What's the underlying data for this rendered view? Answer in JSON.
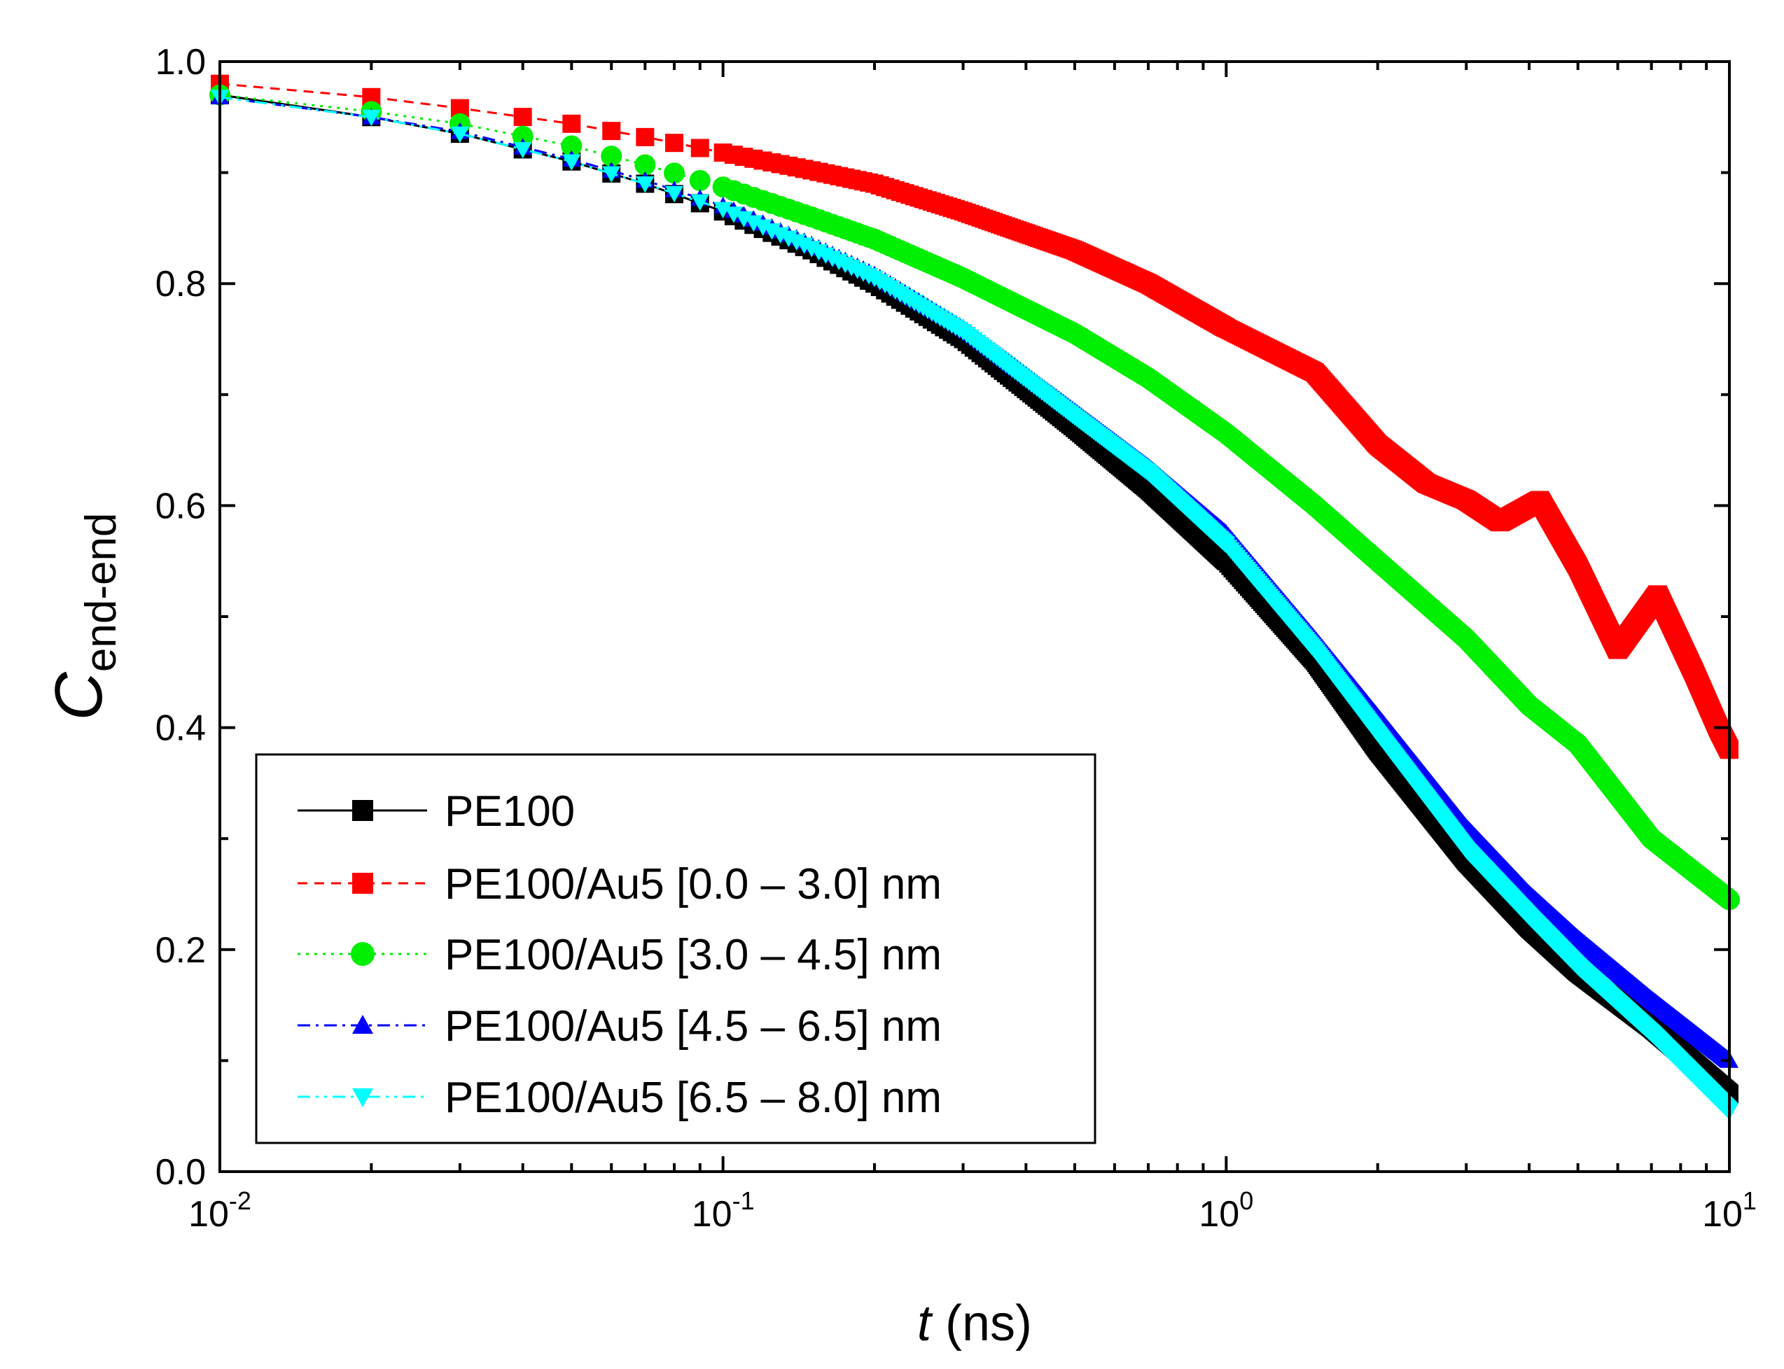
{
  "chart_data": {
    "type": "line",
    "xlabel": {
      "italic": "t",
      "rest": " (ns)"
    },
    "ylabel": {
      "main": "C",
      "sub": "end-end"
    },
    "xscale": "log",
    "xlim": [
      0.01,
      10
    ],
    "ylim": [
      0.0,
      1.0
    ],
    "x_ticks": [
      {
        "value": 0.01,
        "base": "10",
        "exp": "-2"
      },
      {
        "value": 0.1,
        "base": "10",
        "exp": "-1"
      },
      {
        "value": 1,
        "base": "10",
        "exp": "0"
      },
      {
        "value": 10,
        "base": "10",
        "exp": "1"
      }
    ],
    "y_ticks": [
      {
        "value": 0.0,
        "label": "0.0"
      },
      {
        "value": 0.2,
        "label": "0.2"
      },
      {
        "value": 0.4,
        "label": "0.4"
      },
      {
        "value": 0.6,
        "label": "0.6"
      },
      {
        "value": 0.8,
        "label": "0.8"
      },
      {
        "value": 1.0,
        "label": "1.0"
      }
    ],
    "legend_position": "bottom-left",
    "grid": false,
    "series": [
      {
        "name": "PE100",
        "color": "#000000",
        "marker": "square",
        "line_style": "solid",
        "x": [
          0.01,
          0.02,
          0.03,
          0.05,
          0.07,
          0.1,
          0.15,
          0.2,
          0.3,
          0.5,
          0.7,
          1.0,
          1.5,
          2.0,
          3.0,
          4.0,
          5.0,
          7.0,
          10.0
        ],
        "y": [
          0.97,
          0.95,
          0.935,
          0.91,
          0.89,
          0.865,
          0.83,
          0.8,
          0.75,
          0.67,
          0.615,
          0.55,
          0.46,
          0.38,
          0.28,
          0.22,
          0.18,
          0.13,
          0.07
        ]
      },
      {
        "name": "PE100/Au5 [0.0 – 3.0] nm",
        "color": "#ff0000",
        "marker": "square",
        "line_style": "dashed",
        "x": [
          0.01,
          0.02,
          0.03,
          0.05,
          0.07,
          0.1,
          0.15,
          0.2,
          0.3,
          0.5,
          0.7,
          1.0,
          1.5,
          2.0,
          2.5,
          3.0,
          3.5,
          4.2,
          5.0,
          6.0,
          7.2,
          8.5,
          9.5,
          10.0
        ],
        "y": [
          0.98,
          0.968,
          0.958,
          0.944,
          0.932,
          0.918,
          0.902,
          0.89,
          0.865,
          0.83,
          0.8,
          0.76,
          0.72,
          0.655,
          0.62,
          0.605,
          0.585,
          0.605,
          0.545,
          0.47,
          0.52,
          0.45,
          0.4,
          0.38
        ]
      },
      {
        "name": "PE100/Au5 [3.0 – 4.5] nm",
        "color": "#00ee00",
        "marker": "circle",
        "line_style": "dotted",
        "x": [
          0.01,
          0.02,
          0.03,
          0.05,
          0.07,
          0.1,
          0.15,
          0.2,
          0.3,
          0.5,
          0.7,
          1.0,
          1.5,
          2.0,
          3.0,
          4.0,
          5.0,
          7.0,
          10.0
        ],
        "y": [
          0.97,
          0.955,
          0.944,
          0.924,
          0.907,
          0.887,
          0.86,
          0.84,
          0.805,
          0.755,
          0.715,
          0.665,
          0.6,
          0.55,
          0.48,
          0.42,
          0.385,
          0.3,
          0.245
        ]
      },
      {
        "name": "PE100/Au5 [4.5 – 6.5] nm",
        "color": "#0000ff",
        "marker": "triangle-up",
        "line_style": "dashdot",
        "x": [
          0.01,
          0.02,
          0.03,
          0.05,
          0.07,
          0.1,
          0.15,
          0.2,
          0.3,
          0.5,
          0.7,
          1.0,
          1.5,
          2.0,
          3.0,
          4.0,
          5.0,
          7.0,
          10.0
        ],
        "y": [
          0.968,
          0.95,
          0.937,
          0.912,
          0.893,
          0.87,
          0.835,
          0.808,
          0.76,
          0.685,
          0.635,
          0.575,
          0.48,
          0.41,
          0.31,
          0.25,
          0.21,
          0.155,
          0.1
        ]
      },
      {
        "name": "PE100/Au5 [6.5 – 8.0] nm",
        "color": "#00ffff",
        "marker": "triangle-down",
        "line_style": "dashdotdot",
        "x": [
          0.01,
          0.02,
          0.03,
          0.05,
          0.07,
          0.1,
          0.15,
          0.2,
          0.3,
          0.5,
          0.7,
          1.0,
          1.5,
          2.0,
          3.0,
          4.0,
          5.0,
          7.0,
          10.0
        ],
        "y": [
          0.968,
          0.95,
          0.935,
          0.91,
          0.89,
          0.867,
          0.832,
          0.805,
          0.757,
          0.68,
          0.63,
          0.565,
          0.47,
          0.395,
          0.29,
          0.23,
          0.185,
          0.125,
          0.055
        ]
      }
    ]
  }
}
